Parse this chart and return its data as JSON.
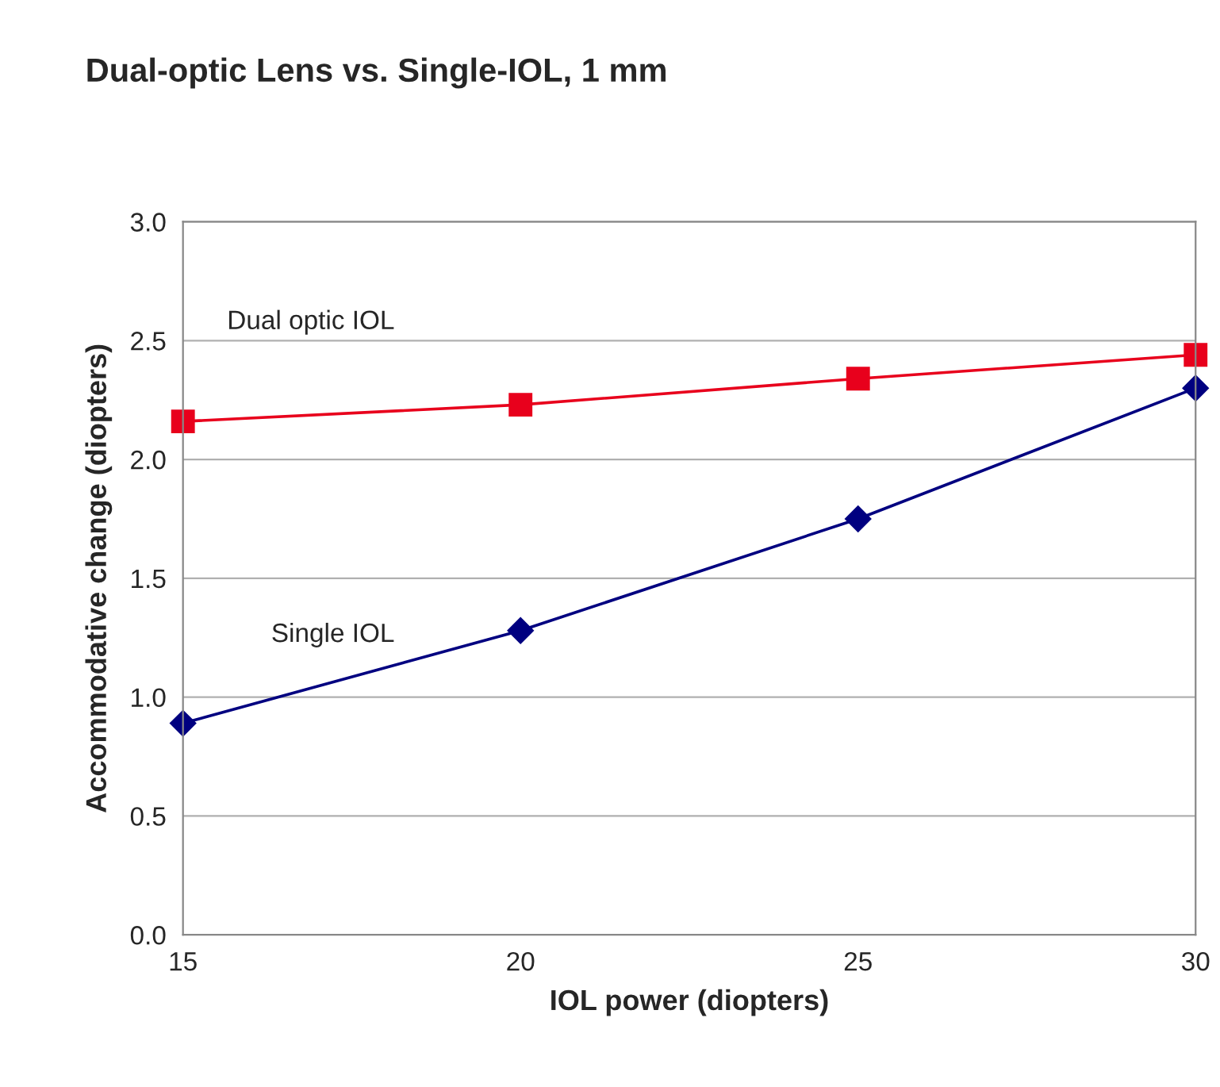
{
  "chart_data": {
    "type": "line",
    "title": "Dual-optic Lens vs. Single-IOL, 1 mm",
    "xlabel": "IOL power (diopters)",
    "ylabel": "Accommodative change (diopters)",
    "x": [
      15,
      20,
      25,
      30
    ],
    "series": [
      {
        "name": "Dual optic IOL",
        "color": "#e8001c",
        "values": [
          2.16,
          2.23,
          2.34,
          2.44
        ],
        "marker": "square"
      },
      {
        "name": "Single IOL",
        "color": "#000080",
        "values": [
          0.89,
          1.28,
          1.75,
          2.3
        ],
        "marker": "diamond"
      }
    ],
    "xlim": [
      15,
      30
    ],
    "xticks": [
      15,
      20,
      25,
      30
    ],
    "ylim": [
      0,
      3
    ],
    "yticks": [
      {
        "value": 0,
        "label": "0.0"
      },
      {
        "value": 0.5,
        "label": "0.5"
      },
      {
        "value": 1,
        "label": "1.0"
      },
      {
        "value": 1.5,
        "label": "1.5"
      },
      {
        "value": 2,
        "label": "2.0"
      },
      {
        "value": 2.5,
        "label": "2.5"
      },
      {
        "value": 3,
        "label": "3.0"
      }
    ],
    "grid": "y"
  }
}
